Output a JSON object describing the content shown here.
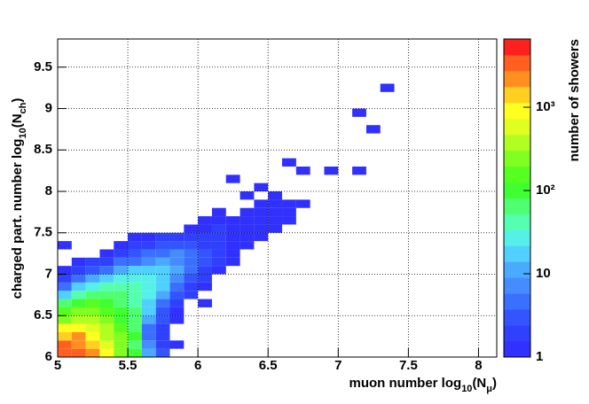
{
  "chart_data": {
    "type": "heatmap",
    "x_label": [
      "muon number log",
      "10",
      "(N",
      "μ",
      ")"
    ],
    "y_label": [
      "charged part. number log",
      "10",
      "(N",
      "ch",
      ")"
    ],
    "colorbar_label": "number of showers",
    "xlim": [
      5,
      8.13
    ],
    "ylim": [
      6,
      9.84
    ],
    "xticks": [
      5,
      5.5,
      6,
      6.5,
      7,
      7.5,
      8
    ],
    "yticks": [
      6,
      6.5,
      7,
      7.5,
      8,
      8.5,
      9,
      9.5
    ],
    "zlim": [
      1,
      6600
    ],
    "zlog": true,
    "zticks": [
      1,
      10,
      {
        "value": 100,
        "label": "10²"
      },
      {
        "value": 1000,
        "label": "10³"
      }
    ],
    "xbin": 0.1,
    "ybin": 0.1,
    "grid": true,
    "palette": [
      "#3030ff",
      "#3040ff",
      "#3355ff",
      "#3a70ff",
      "#448cff",
      "#4aaaff",
      "#50d0ff",
      "#55f0e8",
      "#55ffb0",
      "#50ff70",
      "#40ff30",
      "#55ff20",
      "#80ff20",
      "#b0ff20",
      "#e0ff20",
      "#ffff20",
      "#ffd020",
      "#ff9020",
      "#ff6020",
      "#ff2020"
    ],
    "cells": [
      [
        5.0,
        6.0,
        3000
      ],
      [
        5.1,
        6.0,
        3000
      ],
      [
        5.2,
        6.0,
        2000
      ],
      [
        5.3,
        6.0,
        800
      ],
      [
        5.4,
        6.0,
        300
      ],
      [
        5.5,
        6.0,
        100
      ],
      [
        5.6,
        6.0,
        10
      ],
      [
        5.7,
        6.0,
        3
      ],
      [
        5.0,
        6.1,
        3000
      ],
      [
        5.1,
        6.1,
        2500
      ],
      [
        5.2,
        6.1,
        1200
      ],
      [
        5.3,
        6.1,
        700
      ],
      [
        5.4,
        6.1,
        300
      ],
      [
        5.5,
        6.1,
        80
      ],
      [
        5.6,
        6.1,
        8
      ],
      [
        5.7,
        6.1,
        2
      ],
      [
        5.8,
        6.1,
        1
      ],
      [
        5.0,
        6.2,
        1500
      ],
      [
        5.1,
        6.2,
        2000
      ],
      [
        5.2,
        6.2,
        1000
      ],
      [
        5.3,
        6.2,
        400
      ],
      [
        5.4,
        6.2,
        250
      ],
      [
        5.5,
        6.2,
        100
      ],
      [
        5.6,
        6.2,
        4
      ],
      [
        5.7,
        6.2,
        2
      ],
      [
        5.0,
        6.3,
        800
      ],
      [
        5.1,
        6.3,
        1000
      ],
      [
        5.2,
        6.3,
        700
      ],
      [
        5.3,
        6.3,
        400
      ],
      [
        5.4,
        6.3,
        150
      ],
      [
        5.5,
        6.3,
        60
      ],
      [
        5.6,
        6.3,
        5
      ],
      [
        5.7,
        6.3,
        2
      ],
      [
        5.0,
        6.4,
        300
      ],
      [
        5.1,
        6.4,
        400
      ],
      [
        5.2,
        6.4,
        350
      ],
      [
        5.3,
        6.4,
        250
      ],
      [
        5.4,
        6.4,
        120
      ],
      [
        5.5,
        6.4,
        70
      ],
      [
        5.6,
        6.4,
        10
      ],
      [
        5.7,
        6.4,
        3
      ],
      [
        5.8,
        6.4,
        1
      ],
      [
        5.0,
        6.5,
        150
      ],
      [
        5.1,
        6.5,
        200
      ],
      [
        5.2,
        6.5,
        200
      ],
      [
        5.3,
        6.5,
        150
      ],
      [
        5.4,
        6.5,
        100
      ],
      [
        5.5,
        6.5,
        60
      ],
      [
        5.6,
        6.5,
        15
      ],
      [
        5.7,
        6.5,
        3
      ],
      [
        5.8,
        6.5,
        1
      ],
      [
        5.0,
        6.6,
        80
      ],
      [
        5.1,
        6.6,
        120
      ],
      [
        5.2,
        6.6,
        130
      ],
      [
        5.3,
        6.6,
        100
      ],
      [
        5.4,
        6.6,
        80
      ],
      [
        5.5,
        6.6,
        50
      ],
      [
        5.6,
        6.6,
        20
      ],
      [
        5.7,
        6.6,
        4
      ],
      [
        5.8,
        6.6,
        2
      ],
      [
        6.0,
        6.6,
        1
      ],
      [
        5.0,
        6.7,
        20
      ],
      [
        5.1,
        6.7,
        50
      ],
      [
        5.2,
        6.7,
        70
      ],
      [
        5.3,
        6.7,
        80
      ],
      [
        5.4,
        6.7,
        70
      ],
      [
        5.5,
        6.7,
        50
      ],
      [
        5.6,
        6.7,
        30
      ],
      [
        5.7,
        6.7,
        10
      ],
      [
        5.8,
        6.7,
        3
      ],
      [
        5.9,
        6.7,
        2
      ],
      [
        5.0,
        6.8,
        5
      ],
      [
        5.1,
        6.8,
        15
      ],
      [
        5.2,
        6.8,
        30
      ],
      [
        5.3,
        6.8,
        40
      ],
      [
        5.4,
        6.8,
        50
      ],
      [
        5.5,
        6.8,
        40
      ],
      [
        5.6,
        6.8,
        30
      ],
      [
        5.7,
        6.8,
        15
      ],
      [
        5.8,
        6.8,
        5
      ],
      [
        5.9,
        6.8,
        2
      ],
      [
        6.0,
        6.8,
        1
      ],
      [
        5.0,
        6.9,
        2
      ],
      [
        5.1,
        6.9,
        4
      ],
      [
        5.2,
        6.9,
        10
      ],
      [
        5.3,
        6.9,
        15
      ],
      [
        5.4,
        6.9,
        25
      ],
      [
        5.5,
        6.9,
        30
      ],
      [
        5.6,
        6.9,
        25
      ],
      [
        5.7,
        6.9,
        15
      ],
      [
        5.8,
        6.9,
        8
      ],
      [
        5.9,
        6.9,
        3
      ],
      [
        6.0,
        6.9,
        2
      ],
      [
        5.0,
        7.0,
        1
      ],
      [
        5.1,
        7.0,
        2
      ],
      [
        5.2,
        7.0,
        3
      ],
      [
        5.3,
        7.0,
        5
      ],
      [
        5.4,
        7.0,
        10
      ],
      [
        5.5,
        7.0,
        15
      ],
      [
        5.6,
        7.0,
        20
      ],
      [
        5.7,
        7.0,
        15
      ],
      [
        5.8,
        7.0,
        10
      ],
      [
        5.9,
        7.0,
        4
      ],
      [
        6.0,
        7.0,
        2
      ],
      [
        6.1,
        7.0,
        1
      ],
      [
        5.1,
        7.1,
        1
      ],
      [
        5.2,
        7.1,
        2
      ],
      [
        5.3,
        7.1,
        2
      ],
      [
        5.4,
        7.1,
        4
      ],
      [
        5.5,
        7.1,
        5
      ],
      [
        5.6,
        7.1,
        8
      ],
      [
        5.7,
        7.1,
        10
      ],
      [
        5.8,
        7.1,
        8
      ],
      [
        5.9,
        7.1,
        5
      ],
      [
        6.0,
        7.1,
        3
      ],
      [
        6.1,
        7.1,
        2
      ],
      [
        6.2,
        7.1,
        1
      ],
      [
        5.3,
        7.2,
        1
      ],
      [
        5.4,
        7.2,
        2
      ],
      [
        5.5,
        7.2,
        3
      ],
      [
        5.6,
        7.2,
        4
      ],
      [
        5.7,
        7.2,
        5
      ],
      [
        5.8,
        7.2,
        6
      ],
      [
        5.9,
        7.2,
        4
      ],
      [
        6.0,
        7.2,
        3
      ],
      [
        6.1,
        7.2,
        2
      ],
      [
        6.2,
        7.2,
        1
      ],
      [
        5.0,
        7.3,
        1
      ],
      [
        5.4,
        7.3,
        1
      ],
      [
        5.5,
        7.3,
        2
      ],
      [
        5.6,
        7.3,
        2
      ],
      [
        5.7,
        7.3,
        3
      ],
      [
        5.8,
        7.3,
        3
      ],
      [
        5.9,
        7.3,
        3
      ],
      [
        6.0,
        7.3,
        2
      ],
      [
        6.1,
        7.3,
        2
      ],
      [
        6.2,
        7.3,
        1
      ],
      [
        6.3,
        7.3,
        1
      ],
      [
        5.5,
        7.4,
        1
      ],
      [
        5.6,
        7.4,
        1
      ],
      [
        5.7,
        7.4,
        2
      ],
      [
        5.8,
        7.4,
        2
      ],
      [
        5.9,
        7.4,
        2
      ],
      [
        6.0,
        7.4,
        2
      ],
      [
        6.1,
        7.4,
        2
      ],
      [
        6.2,
        7.4,
        1
      ],
      [
        6.3,
        7.4,
        1
      ],
      [
        6.4,
        7.4,
        1
      ],
      [
        5.9,
        7.5,
        1
      ],
      [
        6.0,
        7.5,
        1
      ],
      [
        6.1,
        7.5,
        2
      ],
      [
        6.2,
        7.5,
        1
      ],
      [
        6.3,
        7.5,
        1
      ],
      [
        6.4,
        7.5,
        1
      ],
      [
        6.5,
        7.5,
        1
      ],
      [
        6.0,
        7.6,
        1
      ],
      [
        6.1,
        7.6,
        1
      ],
      [
        6.2,
        7.6,
        1
      ],
      [
        6.3,
        7.6,
        1
      ],
      [
        6.4,
        7.6,
        1
      ],
      [
        6.5,
        7.6,
        1
      ],
      [
        6.6,
        7.6,
        1
      ],
      [
        6.1,
        7.7,
        1
      ],
      [
        6.3,
        7.7,
        1
      ],
      [
        6.4,
        7.7,
        1
      ],
      [
        6.5,
        7.7,
        1
      ],
      [
        6.6,
        7.7,
        1
      ],
      [
        6.4,
        7.8,
        1
      ],
      [
        6.5,
        7.8,
        1
      ],
      [
        6.6,
        7.8,
        1
      ],
      [
        6.7,
        7.8,
        1
      ],
      [
        6.3,
        7.9,
        1
      ],
      [
        6.5,
        7.9,
        1
      ],
      [
        6.4,
        8.0,
        1
      ],
      [
        6.2,
        8.1,
        1
      ],
      [
        6.7,
        8.2,
        1
      ],
      [
        6.9,
        8.2,
        1
      ],
      [
        7.1,
        8.2,
        1
      ],
      [
        6.6,
        8.3,
        1
      ],
      [
        7.2,
        8.7,
        1
      ],
      [
        7.1,
        8.9,
        1
      ],
      [
        7.3,
        9.2,
        1
      ]
    ]
  }
}
